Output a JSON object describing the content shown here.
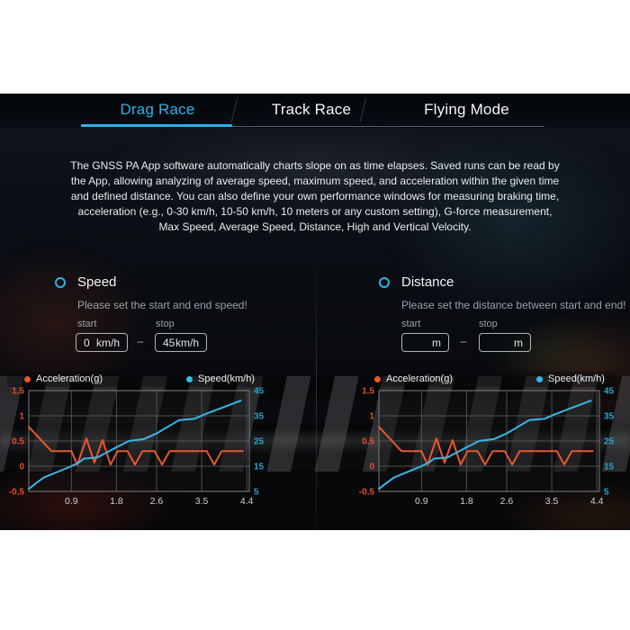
{
  "tabs": [
    {
      "label": "Drag Race",
      "active": true
    },
    {
      "label": "Track Race",
      "active": false
    },
    {
      "label": "Flying Mode",
      "active": false
    }
  ],
  "description": "The GNSS PA App software automatically charts slope on as time elapses. Saved runs can be read by the App, allowing analyzing of average speed, maximum speed, and acceleration within the given time and defined distance. You can also define your own performance windows for measuring braking time, acceleration (e.g., 0-30 km/h, 10-50 km/h, 10 meters or any custom setting), G-force measurement, Max Speed, Average Speed, Distance, High and Vertical Velocity.",
  "speed_panel": {
    "title": "Speed",
    "hint": "Please set the start and end speed!",
    "start_label": "start",
    "stop_label": "stop",
    "start_value": "0",
    "start_unit": "km/h",
    "stop_value": "45",
    "stop_unit": "km/h",
    "separator": "–"
  },
  "distance_panel": {
    "title": "Distance",
    "hint": "Please set the distance between start and end!",
    "start_label": "start",
    "stop_label": "stop",
    "start_value": "",
    "start_unit": "m",
    "stop_value": "",
    "stop_unit": "m",
    "separator": "–"
  },
  "colors": {
    "accent_blue": "#29b2ea",
    "acceleration_orange": "#e8572c",
    "speed_cyan": "#39b7e6",
    "left_tick_color": "#e04f28",
    "right_tick_color": "#2ba4c9",
    "x_tick_color": "#cdd1d4",
    "grid_color": "#5d5d5d",
    "legend_text": "#eef1f3"
  },
  "chart_data": [
    {
      "type": "line",
      "panel": "Speed",
      "legend": [
        {
          "label": "Acceleration(g)",
          "color": "#e8572c"
        },
        {
          "label": "Speed(km/h)",
          "color": "#39b7e6"
        }
      ],
      "x_range": [
        0.05,
        4.45
      ],
      "x_ticks": [
        0.9,
        1.8,
        2.6,
        3.5,
        4.4
      ],
      "left_axis": {
        "name": "Acceleration(g)",
        "range": [
          -0.5,
          1.5
        ],
        "ticks": [
          1.5,
          1,
          0.5,
          0,
          -0.5
        ],
        "tick_color": "#e04f28"
      },
      "right_axis": {
        "name": "Speed(km/h)",
        "range": [
          5,
          45
        ],
        "ticks": [
          45,
          35,
          25,
          15,
          5
        ],
        "tick_color": "#2ba4c9"
      },
      "grid": true,
      "series": [
        {
          "name": "Acceleration(g)",
          "axis": "left",
          "color": "#e8572c",
          "points": [
            [
              0.05,
              0.78
            ],
            [
              0.5,
              0.3
            ],
            [
              0.9,
              0.3
            ],
            [
              1.02,
              0.03
            ],
            [
              1.2,
              0.55
            ],
            [
              1.36,
              0.07
            ],
            [
              1.52,
              0.52
            ],
            [
              1.68,
              0.03
            ],
            [
              1.82,
              0.3
            ],
            [
              2.02,
              0.3
            ],
            [
              2.17,
              0.03
            ],
            [
              2.32,
              0.3
            ],
            [
              2.56,
              0.3
            ],
            [
              2.71,
              0.03
            ],
            [
              2.86,
              0.3
            ],
            [
              3.6,
              0.3
            ],
            [
              3.75,
              0.03
            ],
            [
              3.9,
              0.3
            ],
            [
              4.32,
              0.3
            ]
          ]
        },
        {
          "name": "Speed(km/h)",
          "axis": "right",
          "color": "#39b7e6",
          "points": [
            [
              0.05,
              6
            ],
            [
              0.18,
              8
            ],
            [
              0.35,
              10.5
            ],
            [
              0.9,
              15
            ],
            [
              1.05,
              16.5
            ],
            [
              1.15,
              18
            ],
            [
              1.42,
              18.5
            ],
            [
              1.8,
              22.5
            ],
            [
              2.05,
              25
            ],
            [
              2.35,
              25.8
            ],
            [
              2.6,
              28
            ],
            [
              3.05,
              33.3
            ],
            [
              3.35,
              33.8
            ],
            [
              3.55,
              35.5
            ],
            [
              4.28,
              41
            ]
          ]
        }
      ]
    },
    {
      "type": "line",
      "panel": "Distance",
      "legend": [
        {
          "label": "Acceleration(g)",
          "color": "#e8572c"
        },
        {
          "label": "Speed(km/h)",
          "color": "#39b7e6"
        }
      ],
      "x_range": [
        0.05,
        4.45
      ],
      "x_ticks": [
        0.9,
        1.8,
        2.6,
        3.5,
        4.4
      ],
      "left_axis": {
        "name": "Acceleration(g)",
        "range": [
          -0.5,
          1.5
        ],
        "ticks": [
          1.5,
          1,
          0.5,
          0,
          -0.5
        ],
        "tick_color": "#e04f28"
      },
      "right_axis": {
        "name": "Speed(km/h)",
        "range": [
          5,
          45
        ],
        "ticks": [
          45,
          35,
          25,
          15,
          5
        ],
        "tick_color": "#2ba4c9"
      },
      "grid": true,
      "series": [
        {
          "name": "Acceleration(g)",
          "axis": "left",
          "color": "#e8572c",
          "points": [
            [
              0.05,
              0.78
            ],
            [
              0.5,
              0.3
            ],
            [
              0.9,
              0.3
            ],
            [
              1.02,
              0.03
            ],
            [
              1.2,
              0.55
            ],
            [
              1.36,
              0.07
            ],
            [
              1.52,
              0.52
            ],
            [
              1.68,
              0.03
            ],
            [
              1.82,
              0.3
            ],
            [
              2.02,
              0.3
            ],
            [
              2.17,
              0.03
            ],
            [
              2.32,
              0.3
            ],
            [
              2.56,
              0.3
            ],
            [
              2.71,
              0.03
            ],
            [
              2.86,
              0.3
            ],
            [
              3.6,
              0.3
            ],
            [
              3.75,
              0.03
            ],
            [
              3.9,
              0.3
            ],
            [
              4.32,
              0.3
            ]
          ]
        },
        {
          "name": "Speed(km/h)",
          "axis": "right",
          "color": "#39b7e6",
          "points": [
            [
              0.05,
              6
            ],
            [
              0.18,
              8
            ],
            [
              0.35,
              10.5
            ],
            [
              0.9,
              15
            ],
            [
              1.05,
              16.5
            ],
            [
              1.15,
              18
            ],
            [
              1.42,
              18.5
            ],
            [
              1.8,
              22.5
            ],
            [
              2.05,
              25
            ],
            [
              2.35,
              25.8
            ],
            [
              2.6,
              28
            ],
            [
              3.05,
              33.3
            ],
            [
              3.35,
              33.8
            ],
            [
              3.55,
              35.5
            ],
            [
              4.28,
              41
            ]
          ]
        }
      ]
    }
  ]
}
